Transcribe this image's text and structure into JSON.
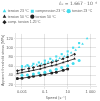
{
  "chart_data": {
    "type": "scatter",
    "title": "ε̇₀ = 1.667 · 10⁻⁴",
    "xlabel": "Speed [s⁻¹]",
    "ylabel": "Apparent threshold stress [MPa]",
    "log": "x",
    "xlim": [
      0.0003,
      3000
    ],
    "ylim": [
      15,
      130
    ],
    "xticks": [
      0.001,
      0.1,
      10,
      {
        "value": 1000,
        "label": "1 000"
      }
    ],
    "yticks": [
      20,
      40,
      60,
      80,
      100,
      120
    ],
    "grid": true,
    "legend": "upper left",
    "series": [
      {
        "name": "tension 23 °C",
        "type": "scatter",
        "color": "#44ddee",
        "marker": "triangle",
        "x": [
          0.001,
          0.002,
          0.004,
          0.008,
          0.02,
          0.05,
          0.1,
          0.2,
          0.5,
          1,
          2,
          5,
          10,
          20,
          50,
          100,
          200,
          500
        ],
        "values": [
          58,
          59,
          60,
          61,
          63,
          65,
          67,
          69,
          72,
          74,
          77,
          81,
          85,
          89,
          95,
          101,
          108,
          120
        ]
      },
      {
        "name": "compression 23 °C",
        "type": "scatter",
        "color": "#44ddee",
        "marker": "square",
        "x": [
          0.001,
          0.003,
          0.01,
          0.03,
          0.1,
          0.3,
          1,
          3,
          10,
          30,
          100
        ],
        "values": [
          60,
          62,
          65,
          68,
          72,
          76,
          81,
          86,
          92,
          100,
          110
        ]
      },
      {
        "name": "torsion 23 °C",
        "type": "scatter",
        "color": "#44ddee",
        "marker": "circle",
        "x": [
          0.001,
          0.003,
          0.01,
          0.03,
          0.1,
          0.3,
          1,
          3,
          10,
          30,
          100
        ],
        "values": [
          40,
          41,
          43,
          45,
          47,
          50,
          53,
          57,
          61,
          66,
          72
        ]
      },
      {
        "name": "tension 50 °C",
        "type": "line",
        "color": "#222222",
        "marker": "triangle",
        "line_style": "solid",
        "x": [
          0.0004,
          0.001,
          0.004,
          0.01,
          0.04,
          0.1,
          0.4,
          1,
          4,
          10,
          40
        ],
        "values": [
          44,
          46,
          49,
          51,
          54,
          57,
          61,
          63,
          68,
          71,
          76
        ]
      },
      {
        "name": "torsion 50 °C",
        "type": "line",
        "color": "#222222",
        "marker": "circle",
        "line_style": "solid",
        "x": [
          0.0004,
          0.001,
          0.004,
          0.01,
          0.04,
          0.1,
          0.4,
          1,
          4,
          10
        ],
        "values": [
          33,
          34,
          36,
          38,
          40,
          42,
          45,
          47,
          51,
          54
        ]
      },
      {
        "name": "comp. torsion 1.25°C",
        "type": "line",
        "color": "#222222",
        "marker": "diamond",
        "line_style": "dashed",
        "x": [
          0.0004,
          0.001,
          0.004,
          0.01,
          0.04,
          0.1,
          0.4,
          1,
          4,
          10,
          40
        ],
        "values": [
          50,
          52,
          55,
          57,
          61,
          64,
          68,
          71,
          76,
          80,
          86
        ]
      }
    ]
  }
}
